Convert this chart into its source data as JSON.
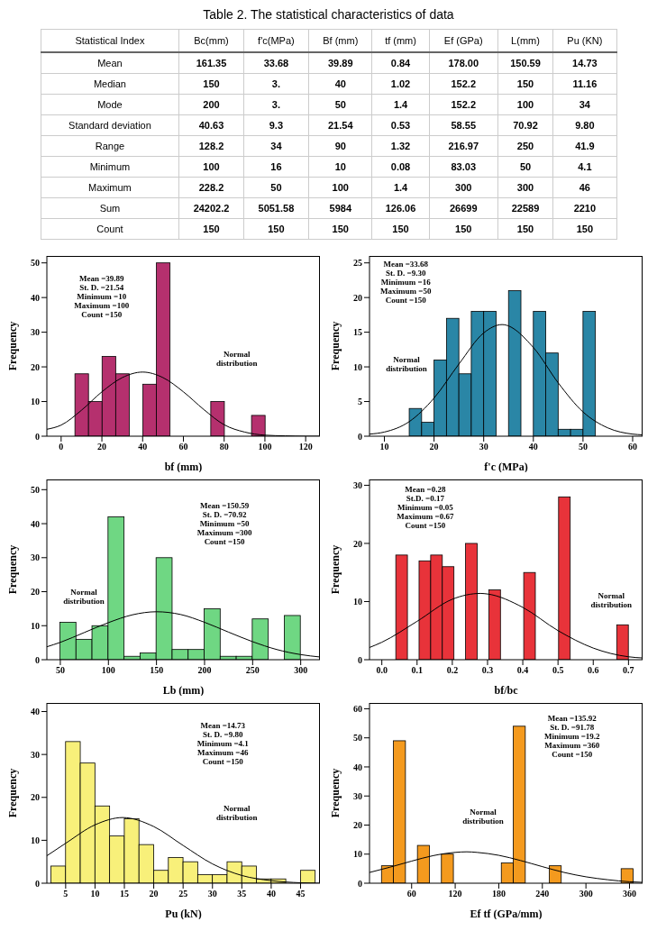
{
  "chart_data": [
    {
      "type": "other",
      "title": "Table 2. The statistical characteristics of data",
      "ylabel": "Statistical Index",
      "categories": [
        "Bc(mm)",
        "f'c(MPa)",
        "Bf  (mm)",
        "tf (mm)",
        "Ef (GPa)",
        "L(mm)",
        "Pu (KN)"
      ],
      "y_categories": [
        "Mean",
        "Median",
        "Mode",
        "Standard deviation",
        "Range",
        "Minimum",
        "Maximum",
        "Sum",
        "Count"
      ],
      "cell_labels": [
        [
          "161.35",
          "33.68",
          "39.89",
          "0.84",
          "178.00",
          "150.59",
          "14.73"
        ],
        [
          "150",
          "3.",
          "40",
          "1.02",
          "152.2",
          "150",
          "11.16"
        ],
        [
          "200",
          "3.",
          "50",
          "1.4",
          "152.2",
          "100",
          "34"
        ],
        [
          "40.63",
          "9.3",
          "21.54",
          "0.53",
          "58.55",
          "70.92",
          "9.80"
        ],
        [
          "128.2",
          "34",
          "90",
          "1.32",
          "216.97",
          "250",
          "41.9"
        ],
        [
          "100",
          "16",
          "10",
          "0.08",
          "83.03",
          "50",
          "4.1"
        ],
        [
          "228.2",
          "50",
          "100",
          "1.4",
          "300",
          "300",
          "46"
        ],
        [
          "24202.2",
          "5051.58",
          "5984",
          "126.06",
          "26699",
          "22589",
          "2210"
        ],
        [
          "150",
          "150",
          "150",
          "150",
          "150",
          "150",
          "150"
        ]
      ]
    },
    {
      "type": "histogram",
      "xlabel": "bf (mm)",
      "ylabel": "Frequency",
      "color": "#b5306e",
      "bins": [
        6.67,
        13.33,
        20,
        26.67,
        33.33,
        40,
        46.67,
        53.33,
        60,
        66.67,
        73.33,
        80,
        86.67,
        93.33,
        100
      ],
      "values": [
        18,
        10,
        23,
        18,
        0,
        15,
        50,
        0,
        0,
        0,
        10,
        0,
        0,
        6
      ],
      "xlim": [
        -7,
        127
      ],
      "xticks": [
        0,
        20,
        40,
        60,
        80,
        100,
        120
      ],
      "ylim": [
        0,
        52
      ],
      "yticks": [
        0,
        10,
        20,
        30,
        40,
        50
      ],
      "annotations": [
        "Mean =39.89",
        "St. D. =21.54",
        "Minimum =10",
        "Maximum =100",
        "Count =150"
      ],
      "series": [
        {
          "name": "Normal distribution",
          "type": "line",
          "color": "#000000",
          "x": [
            -7,
            0,
            10,
            20,
            30,
            40,
            50,
            60,
            70,
            80,
            90,
            100,
            110,
            120,
            127
          ],
          "values": [
            2.0,
            3.2,
            7.5,
            12.8,
            16.9,
            18.5,
            16.9,
            12.8,
            7.7,
            3.3,
            1.2,
            0.3,
            0.1,
            0,
            0
          ]
        }
      ]
    },
    {
      "type": "histogram",
      "xlabel": "f'c (MPa)",
      "ylabel": "Frequency",
      "color": "#2a86a6",
      "bins": [
        15,
        17.5,
        20,
        22.5,
        25,
        27.5,
        30,
        32.5,
        35,
        37.5,
        40,
        42.5,
        45,
        47.5,
        50,
        52.5
      ],
      "values": [
        4,
        2,
        11,
        17,
        9,
        18,
        18,
        0,
        21,
        0,
        18,
        12,
        1,
        1,
        18
      ],
      "xlim": [
        7,
        62
      ],
      "xticks": [
        10,
        20,
        30,
        40,
        50,
        60
      ],
      "ylim": [
        0,
        26
      ],
      "yticks": [
        0,
        5,
        10,
        15,
        20,
        25
      ],
      "annotations": [
        "Mean =33.68",
        "St. D. =9.30",
        "Minimum =16",
        "Maximum =50",
        "Count =150"
      ],
      "series": [
        {
          "name": "Normal distribution",
          "type": "line",
          "color": "#000000",
          "x": [
            7,
            10,
            15,
            20,
            25,
            30,
            33.7,
            40,
            45,
            50,
            55,
            60,
            62
          ],
          "values": [
            0.3,
            0.6,
            2.1,
            5.5,
            10.4,
            14.9,
            16.1,
            12.8,
            7.7,
            3.5,
            1.2,
            0.3,
            0.2
          ]
        }
      ]
    },
    {
      "type": "histogram",
      "xlabel": "Lb (mm)",
      "ylabel": "Frequency",
      "color": "#6fd783",
      "bins": [
        50,
        66.67,
        83.33,
        100,
        116.67,
        133.33,
        150,
        166.67,
        183.33,
        200,
        216.67,
        233.33,
        250,
        266.67,
        283.33,
        300
      ],
      "values": [
        11,
        6,
        10,
        42,
        1,
        2,
        30,
        3,
        3,
        15,
        1,
        1,
        12,
        0,
        13
      ],
      "xlim": [
        36,
        320
      ],
      "xticks": [
        50,
        100,
        150,
        200,
        250,
        300
      ],
      "ylim": [
        0,
        53
      ],
      "yticks": [
        0,
        10,
        20,
        30,
        40,
        50
      ],
      "annotations": [
        "Mean =150.59",
        "St. D. =70.92",
        "Minimum =50",
        "Maximum =300",
        "Count =150"
      ],
      "series": [
        {
          "name": "Normal distribution",
          "type": "line",
          "color": "#000000",
          "x": [
            36,
            50,
            75,
            100,
            125,
            150,
            175,
            200,
            225,
            250,
            275,
            300,
            320
          ],
          "values": [
            3.8,
            5.1,
            8.0,
            10.9,
            13.2,
            14.1,
            13.3,
            11.0,
            8.1,
            5.3,
            3.0,
            1.5,
            0.8
          ]
        }
      ]
    },
    {
      "type": "histogram",
      "xlabel": "bf/bc",
      "ylabel": "Frequency",
      "color": "#e8333a",
      "bins": [
        0.04,
        0.073,
        0.106,
        0.139,
        0.172,
        0.205,
        0.238,
        0.271,
        0.304,
        0.337,
        0.37,
        0.403,
        0.436,
        0.469,
        0.502,
        0.535,
        0.568,
        0.601,
        0.634,
        0.667,
        0.7
      ],
      "values": [
        18,
        0,
        17,
        18,
        16,
        0,
        20,
        0,
        12,
        0,
        0,
        15,
        0,
        0,
        28,
        0,
        0,
        0,
        0,
        6
      ],
      "xlim": [
        -0.035,
        0.74
      ],
      "xticks": [
        {
          "value": 0,
          "label": "0.0"
        },
        0.1,
        0.2,
        0.3,
        0.4,
        0.5,
        0.6,
        0.7
      ],
      "ylim": [
        0,
        31
      ],
      "yticks": [
        0,
        10,
        20,
        30
      ],
      "annotations": [
        "Mean =0.28",
        "St.D. =0.17",
        "Minimum =0.05",
        "Maximum =0.67",
        "Count =150"
      ],
      "series": [
        {
          "name": "Normal distribution",
          "type": "line",
          "color": "#000000",
          "x": [
            -0.035,
            0,
            0.1,
            0.2,
            0.28,
            0.3,
            0.4,
            0.5,
            0.6,
            0.7,
            0.74
          ],
          "values": [
            2.1,
            3.0,
            6.6,
            10.4,
            11.4,
            11.3,
            9.0,
            5.0,
            2.0,
            0.5,
            0.3
          ]
        }
      ]
    },
    {
      "type": "histogram",
      "xlabel": "Pu (kN)",
      "ylabel": "Frequency",
      "color": "#f8f07a",
      "bins": [
        2.5,
        5,
        7.5,
        10,
        12.5,
        15,
        17.5,
        20,
        22.5,
        25,
        27.5,
        30,
        32.5,
        35,
        37.5,
        40,
        42.5,
        45,
        47.5
      ],
      "values": [
        4,
        33,
        28,
        18,
        11,
        15,
        9,
        3,
        6,
        5,
        2,
        2,
        5,
        4,
        1,
        1,
        0,
        3
      ],
      "xlim": [
        1.8,
        48.3
      ],
      "xticks": [
        5,
        10,
        15,
        20,
        25,
        30,
        35,
        40,
        45
      ],
      "ylim": [
        0,
        42
      ],
      "yticks": [
        0,
        10,
        20,
        30,
        40
      ],
      "annotations": [
        "Mean =14.73",
        "St. D. =9.80",
        "Minimum =4.1",
        "Maximum =46",
        "Count =150"
      ],
      "series": [
        {
          "name": "Normal distribution",
          "type": "line",
          "color": "#000000",
          "x": [
            1.8,
            5,
            10,
            14.7,
            20,
            25,
            30,
            35,
            40,
            45,
            48.3
          ],
          "values": [
            6.4,
            9.3,
            13.6,
            15.3,
            13.2,
            8.8,
            4.5,
            1.8,
            0.6,
            0.1,
            0
          ]
        }
      ]
    },
    {
      "type": "histogram",
      "xlabel": "Ef tf (GPa/mm)",
      "ylabel": "Frequency",
      "color": "#f49a1e",
      "bins": [
        18.5,
        35,
        51.5,
        68,
        84.5,
        101,
        117.5,
        134,
        150.5,
        167,
        183.5,
        200,
        216.5,
        233,
        249.5,
        266,
        282.5,
        299,
        315.5,
        332,
        348.5,
        365
      ],
      "values": [
        6,
        49,
        0,
        13,
        0,
        10,
        0,
        0,
        0,
        0,
        7,
        54,
        0,
        0,
        6,
        0,
        0,
        0,
        0,
        0,
        5
      ],
      "xlim": [
        2,
        378
      ],
      "xticks": [
        60,
        120,
        180,
        240,
        300,
        360
      ],
      "ylim": [
        0,
        62
      ],
      "yticks": [
        0,
        10,
        20,
        30,
        40,
        50,
        60
      ],
      "annotations": [
        "Mean =135.92",
        "St. D. =91.78",
        "Minimum =19.2",
        "Maximum =360",
        "Count =150"
      ],
      "series": [
        {
          "name": "Normal distribution",
          "type": "line",
          "color": "#000000",
          "x": [
            2,
            30,
            60,
            90,
            120,
            136,
            150,
            180,
            210,
            240,
            270,
            300,
            330,
            360,
            378
          ],
          "values": [
            3.7,
            5.5,
            7.6,
            9.5,
            10.6,
            10.8,
            10.6,
            9.6,
            7.8,
            5.7,
            3.7,
            2.2,
            1.2,
            0.5,
            0.3
          ]
        }
      ]
    }
  ]
}
